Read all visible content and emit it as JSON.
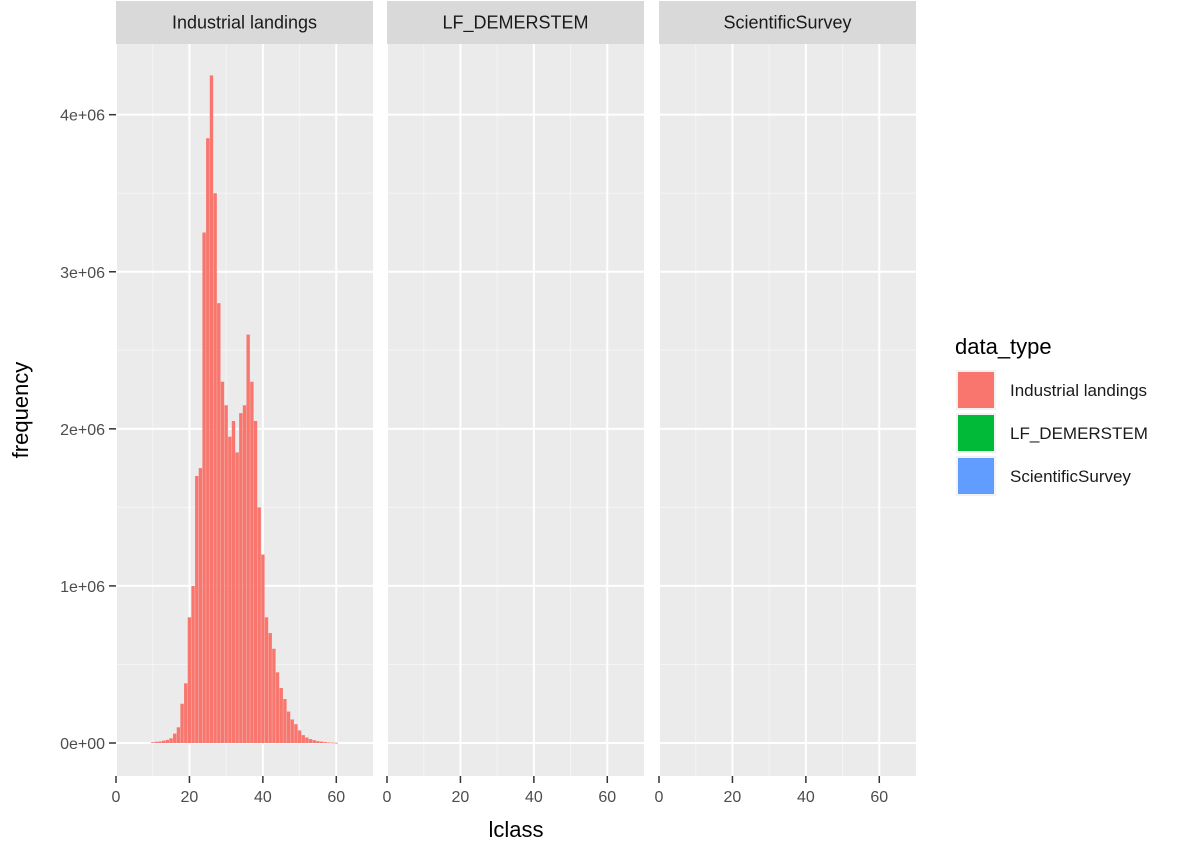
{
  "chart_data": {
    "type": "bar",
    "xlabel": "lclass",
    "ylabel": "frequency",
    "xlim": [
      0,
      70
    ],
    "ylim": [
      -210000,
      4450000
    ],
    "x_ticks": [
      0,
      20,
      40,
      60
    ],
    "x_tick_labels": [
      "0",
      "20",
      "40",
      "60"
    ],
    "y_ticks": [
      0,
      1000000,
      2000000,
      3000000,
      4000000
    ],
    "y_tick_labels": [
      "0e+00",
      "1e+06",
      "2e+06",
      "3e+06",
      "4e+06"
    ],
    "grid": true,
    "legend": {
      "title": "data_type",
      "position": "right",
      "entries": [
        {
          "label": "Industrial landings",
          "color": "#F8766D"
        },
        {
          "label": "LF_DEMERSTEM",
          "color": "#00BA38"
        },
        {
          "label": "ScientificSurvey",
          "color": "#619CFF"
        }
      ]
    },
    "facets": [
      {
        "title": "Industrial landings",
        "color": "#F8766D",
        "series": [
          {
            "name": "Industrial landings",
            "x": [
              10,
              11,
              12,
              13,
              14,
              15,
              16,
              17,
              18,
              19,
              20,
              21,
              22,
              23,
              24,
              25,
              26,
              27,
              28,
              29,
              30,
              31,
              32,
              33,
              34,
              35,
              36,
              37,
              38,
              39,
              40,
              41,
              42,
              43,
              44,
              45,
              46,
              47,
              48,
              49,
              50,
              51,
              52,
              53,
              54,
              55,
              56,
              57,
              58,
              59,
              60
            ],
            "values": [
              5000,
              8000,
              10000,
              15000,
              20000,
              30000,
              60000,
              100000,
              250000,
              380000,
              800000,
              1000000,
              1700000,
              1750000,
              3250000,
              3850000,
              4250000,
              3500000,
              2800000,
              2300000,
              2150000,
              1950000,
              2050000,
              1850000,
              2100000,
              2150000,
              2600000,
              2300000,
              2050000,
              1500000,
              1200000,
              800000,
              700000,
              600000,
              450000,
              350000,
              280000,
              200000,
              150000,
              120000,
              80000,
              50000,
              35000,
              25000,
              18000,
              12000,
              9000,
              6000,
              4000,
              3000,
              2000
            ]
          }
        ]
      },
      {
        "title": "LF_DEMERSTEM",
        "color": "#00BA38",
        "series": []
      },
      {
        "title": "ScientificSurvey",
        "color": "#619CFF",
        "series": []
      }
    ]
  }
}
